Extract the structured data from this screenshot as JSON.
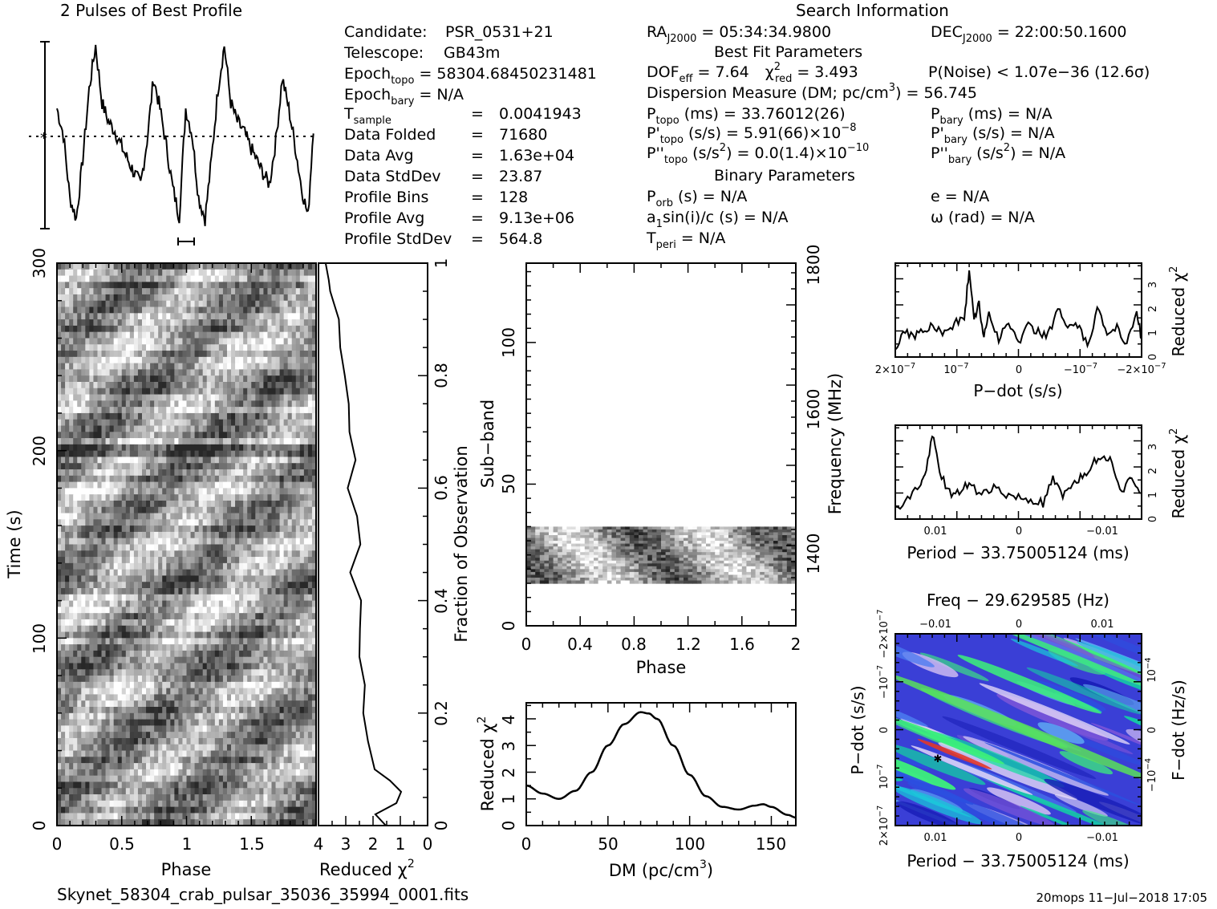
{
  "profile_title": "2 Pulses of Best Profile",
  "search_title": "Search Information",
  "info": {
    "candidate_label": "Candidate:",
    "candidate": "PSR_0531+21",
    "telescope_label": "Telescope:",
    "telescope": "GB43m",
    "epoch_topo_label": "Epoch",
    "epoch_topo_sub": "topo",
    "epoch_topo": "= 58304.68450231481",
    "epoch_bary_label": "Epoch",
    "epoch_bary_sub": "bary",
    "epoch_bary": "= N/A",
    "tsample_label": "T",
    "tsample_sub": "sample",
    "tsample": "0.0041943",
    "data_folded_label": "Data Folded",
    "data_folded": "71680",
    "data_avg_label": "Data Avg",
    "data_avg": "1.63e+04",
    "data_std_label": "Data StdDev",
    "data_std": "23.87",
    "profile_bins_label": "Profile Bins",
    "profile_bins": "128",
    "profile_avg_label": "Profile Avg",
    "profile_avg": "9.13e+06",
    "profile_std_label": "Profile StdDev",
    "profile_std": "564.8",
    "eq": "="
  },
  "search": {
    "ra_label": "RA",
    "ra_sub": "J2000",
    "ra": "= 05:34:34.9800",
    "dec_label": "DEC",
    "dec_sub": "J2000",
    "dec": "= 22:00:50.1600",
    "best_fit_title": "Best Fit Parameters",
    "dof_label": "DOF",
    "dof_sub": "eff",
    "dof": "= 7.64",
    "chi_label": "χ",
    "chi_sup": "2",
    "chi_sub": "red",
    "chi": "= 3.493",
    "pnoise": "P(Noise) < 1.07e−36   (12.6σ)",
    "dm_line": "Dispersion Measure (DM; pc/cm",
    "dm_sup": "3",
    "dm_val": ") = 56.745",
    "ptopo_label": "P",
    "ptopo_sub": "topo",
    "ptopo": "(ms)  =   33.76012(26)",
    "pbary_label": "P",
    "pbary_sub": "bary",
    "pbary": "(ms) = N/A",
    "pdtopo_label": "P'",
    "pdtopo_sub": "topo",
    "pdtopo": "(s/s) =   5.91(66)×10",
    "pdtopo_exp": "−8",
    "pdbary_label": "P'",
    "pdbary_sub": "bary",
    "pdbary": "(s/s) = N/A",
    "pddtopo_label": "P''",
    "pddtopo_sub": "topo",
    "pddtopo_a": "(s/s",
    "pddtopo_a_sup": "2",
    "pddtopo": ") = 0.0(1.4)×10",
    "pddtopo_exp": "−10",
    "pddbary_label": "P''",
    "pddbary_sub": "bary",
    "pddbary_a": "(s/s",
    "pddbary_a_sup": "2",
    "pddbary": ") = N/A",
    "binary_title": "Binary Parameters",
    "porb_label": "P",
    "porb_sub": "orb",
    "porb": "(s) = N/A",
    "e": "e = N/A",
    "a1_label": "a",
    "a1_sub": "1",
    "a1": "sin(i)/c (s) = N/A",
    "omega": "ω (rad) = N/A",
    "tperi_label": "T",
    "tperi_sub": "peri",
    "tperi": "= N/A"
  },
  "labels": {
    "time_axis": "Time (s)",
    "phase": "Phase",
    "reduced_chi": "Reduced χ",
    "chi_sup": "2",
    "fraction_obs": "Fraction of Observation",
    "subband": "Sub−band",
    "frequency": "Frequency (MHz)",
    "dm_axis": "DM (pc/cm",
    "dm_axis_sup": "3",
    "dm_axis_end": ")",
    "pdot_axis": "P−dot (s/s)",
    "period_axis": "Period − 33.75005124 (ms)",
    "freq_title": "Freq − 29.629585 (Hz)",
    "fdot_axis": "F−dot (Hz/s)",
    "filename": "Skynet_58304_crab_pulsar_35036_35994_0001.fits",
    "footer": "20mops  11−Jul−2018 17:05"
  },
  "chart_data": [
    {
      "type": "line",
      "name": "profile",
      "title": "2 Pulses of Best Profile",
      "x_phase": [
        0,
        0.05,
        0.1,
        0.15,
        0.2,
        0.25,
        0.3,
        0.35,
        0.4,
        0.45,
        0.5,
        0.55,
        0.6,
        0.65,
        0.7,
        0.75,
        0.8,
        0.85,
        0.9,
        0.95,
        1.0
      ],
      "y_norm": [
        0.62,
        0.48,
        0.15,
        0.04,
        0.35,
        0.72,
        0.95,
        0.65,
        0.55,
        0.5,
        0.42,
        0.35,
        0.28,
        0.22,
        0.45,
        0.78,
        0.62,
        0.42,
        0.2,
        0.05,
        0.62
      ]
    },
    {
      "type": "heatmap",
      "name": "time-phase",
      "xlabel": "Phase",
      "ylabel": "Time (s)",
      "xlim": [
        0,
        2
      ],
      "ylim": [
        0,
        300
      ],
      "xticks": [
        0,
        0.5,
        1,
        1.5
      ],
      "yticks": [
        0,
        100,
        200,
        300
      ]
    },
    {
      "type": "line",
      "name": "time-chi2",
      "xlabel": "Reduced χ2",
      "xlim": [
        4,
        0
      ],
      "xticks": [
        4,
        3,
        2,
        1,
        0
      ],
      "y_fraction": [
        0.0,
        0.02,
        0.04,
        0.06,
        0.08,
        0.1,
        0.15,
        0.2,
        0.25,
        0.3,
        0.35,
        0.4,
        0.45,
        0.5,
        0.55,
        0.6,
        0.65,
        0.7,
        0.75,
        0.8,
        0.85,
        0.9,
        0.95,
        0.97,
        1.0
      ],
      "chi2": [
        1.6,
        1.8,
        1.2,
        1.0,
        1.3,
        1.9,
        2.2,
        2.5,
        2.3,
        2.4,
        2.6,
        2.5,
        2.7,
        2.5,
        2.6,
        3.0,
        2.7,
        2.9,
        3.0,
        3.1,
        3.2,
        3.4,
        3.5,
        3.7,
        3.8
      ],
      "y2label": "Fraction of Observation",
      "y2ticks": [
        0,
        0.2,
        0.4,
        0.6,
        0.8,
        1
      ]
    },
    {
      "type": "heatmap",
      "name": "subband-phase",
      "xlabel": "Phase",
      "ylabel": "Sub−band",
      "y2label": "Frequency (MHz)",
      "xlim": [
        0,
        2
      ],
      "ylim": [
        0,
        128
      ],
      "xticks": [
        0,
        0.4,
        0.8,
        1.2,
        1.6,
        2
      ],
      "yticks": [
        0,
        50,
        100
      ],
      "y2ticks": [
        1400,
        1600,
        1800
      ],
      "data_band": [
        15,
        35
      ]
    },
    {
      "type": "line",
      "name": "dm-chi2",
      "xlabel": "DM (pc/cm3)",
      "ylabel": "Reduced χ2",
      "xlim": [
        0,
        165
      ],
      "ylim": [
        0,
        4.6
      ],
      "xticks": [
        0,
        50,
        100,
        150
      ],
      "yticks": [
        0,
        1,
        2,
        3,
        4
      ],
      "x": [
        0,
        10,
        20,
        30,
        40,
        50,
        60,
        70,
        75,
        80,
        90,
        100,
        110,
        120,
        130,
        140,
        145,
        150,
        160,
        165
      ],
      "y": [
        1.5,
        1.2,
        1.0,
        1.3,
        2.0,
        3.0,
        3.8,
        4.25,
        4.2,
        4.0,
        3.0,
        1.9,
        1.1,
        0.7,
        0.6,
        0.75,
        0.8,
        0.7,
        0.4,
        0.3
      ]
    },
    {
      "type": "line",
      "name": "pdot-chi2",
      "xlabel": "P−dot (s/s)",
      "ylabel": "Reduced χ2",
      "xticks": [
        "2×10−7",
        "10−7",
        "0",
        "−10−7",
        "−2×10−7"
      ],
      "yticks": [
        0,
        1,
        2,
        3
      ],
      "ylim": [
        0,
        3.6
      ],
      "x_norm": [
        0,
        0.04,
        0.08,
        0.12,
        0.16,
        0.2,
        0.24,
        0.28,
        0.3,
        0.32,
        0.34,
        0.36,
        0.38,
        0.42,
        0.46,
        0.5,
        0.54,
        0.58,
        0.62,
        0.66,
        0.7,
        0.74,
        0.78,
        0.82,
        0.86,
        0.9,
        0.94,
        0.98,
        1
      ],
      "y": [
        0.4,
        1.0,
        0.8,
        1.1,
        1.2,
        0.9,
        1.3,
        1.5,
        3.3,
        1.5,
        2.0,
        0.8,
        1.7,
        0.7,
        1.3,
        0.6,
        1.2,
        1.0,
        0.8,
        1.9,
        1.1,
        1.2,
        0.4,
        1.8,
        0.9,
        1.2,
        0.5,
        1.8,
        0.7
      ]
    },
    {
      "type": "line",
      "name": "period-chi2",
      "xlabel": "Period − 33.75005124 (ms)",
      "ylabel": "Reduced χ2",
      "xticks": [
        "0.01",
        "0",
        "−0.01"
      ],
      "yticks": [
        0,
        1,
        2,
        3
      ],
      "ylim": [
        0,
        3.6
      ],
      "x_norm": [
        0,
        0.05,
        0.1,
        0.12,
        0.15,
        0.18,
        0.22,
        0.26,
        0.3,
        0.35,
        0.4,
        0.45,
        0.5,
        0.55,
        0.6,
        0.64,
        0.68,
        0.72,
        0.76,
        0.8,
        0.84,
        0.88,
        0.92,
        0.96,
        1
      ],
      "y": [
        0.4,
        0.7,
        1.3,
        1.6,
        3.3,
        1.8,
        1.0,
        1.1,
        1.3,
        1.0,
        1.2,
        0.9,
        0.8,
        0.7,
        0.6,
        1.5,
        0.8,
        1.4,
        1.6,
        2.1,
        2.5,
        2.2,
        1.0,
        1.6,
        1.0
      ]
    },
    {
      "type": "heatmap",
      "name": "period-pdot",
      "title": "Freq − 29.629585 (Hz)",
      "xlabel": "Period − 33.75005124 (ms)",
      "ylabel": "P−dot (s/s)",
      "y2label": "F−dot (Hz/s)",
      "xticks": [
        "0.01",
        "0",
        "−0.01"
      ],
      "yticks": [
        "2×10−7",
        "10−7",
        "0",
        "−10−7",
        "−2×10−7"
      ],
      "top_ticks": [
        "−0.01",
        "0",
        "0.01"
      ],
      "right_ticks": [
        "10−4",
        "0",
        "−10−4"
      ]
    }
  ]
}
